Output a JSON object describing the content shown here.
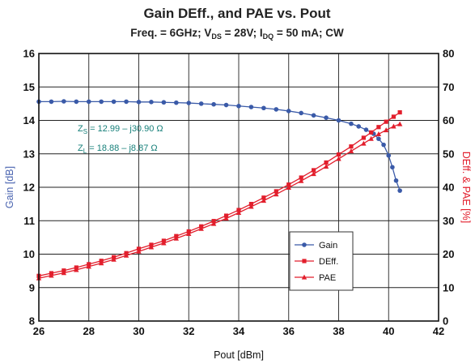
{
  "chart_data": {
    "type": "line",
    "title": "Gain DEff., and PAE vs. Pout",
    "subtitle": {
      "freq": "Freq. = 6GHz; ",
      "vds_main": "V",
      "vds_sub": "DS",
      "vds_tail": " = 28V; ",
      "idq_main": "I",
      "idq_sub": "DQ",
      "idq_tail": " = 50 mA; CW"
    },
    "xlabel": "Pout [dBm]",
    "ylabel_left": "Gain [dB]",
    "ylabel_right": "DEff. & PAE [%]",
    "xlim": [
      26,
      42
    ],
    "ylim_left": [
      8,
      16
    ],
    "ylim_right": [
      0,
      80
    ],
    "xticks": [
      "26",
      "28",
      "30",
      "32",
      "34",
      "36",
      "38",
      "40",
      "42"
    ],
    "yticks_left": [
      "8",
      "9",
      "10",
      "11",
      "12",
      "13",
      "14",
      "15",
      "16"
    ],
    "yticks_right": [
      "0",
      "10",
      "20",
      "30",
      "40",
      "50",
      "60",
      "70",
      "80"
    ],
    "grid": true,
    "legend_position": "lower-right",
    "annotations": {
      "zs_main": "Z",
      "zs_sub": "S",
      "zs_value": " = 12.99 – j30.90 Ω",
      "zl_main": "Z",
      "zl_sub": "L",
      "zl_value": " = 18.88 – j8.87  Ω"
    },
    "colors": {
      "gain": "#3a5aa8",
      "deff": "#e21e2c",
      "pae": "#e21e2c",
      "left_axis_label": "#4a64b0",
      "right_axis_label": "#e21e2c",
      "annotation": "#17807a"
    },
    "series": [
      {
        "name": "Gain",
        "axis": "left",
        "marker": "circle",
        "x": [
          26.0,
          26.5,
          27.0,
          27.5,
          28.0,
          28.5,
          29.0,
          29.5,
          30.0,
          30.5,
          31.0,
          31.5,
          32.0,
          32.5,
          33.0,
          33.5,
          34.0,
          34.5,
          35.0,
          35.5,
          36.0,
          36.5,
          37.0,
          37.5,
          38.0,
          38.5,
          38.8,
          39.1,
          39.4,
          39.6,
          39.8,
          40.0,
          40.15,
          40.3,
          40.45
        ],
        "values": [
          14.56,
          14.56,
          14.57,
          14.56,
          14.56,
          14.56,
          14.56,
          14.56,
          14.55,
          14.55,
          14.54,
          14.53,
          14.52,
          14.5,
          14.48,
          14.46,
          14.43,
          14.4,
          14.37,
          14.33,
          14.28,
          14.22,
          14.15,
          14.08,
          14.0,
          13.9,
          13.82,
          13.72,
          13.6,
          13.45,
          13.27,
          12.95,
          12.6,
          12.2,
          11.9
        ]
      },
      {
        "name": "DEff.",
        "axis": "right",
        "marker": "square",
        "x": [
          26.0,
          26.5,
          27.0,
          27.5,
          28.0,
          28.5,
          29.0,
          29.5,
          30.0,
          30.5,
          31.0,
          31.5,
          32.0,
          32.5,
          33.0,
          33.5,
          34.0,
          34.5,
          35.0,
          35.5,
          36.0,
          36.5,
          37.0,
          37.5,
          38.0,
          38.5,
          39.0,
          39.3,
          39.6,
          39.9,
          40.2,
          40.45
        ],
        "values": [
          13.5,
          14.3,
          15.1,
          16.0,
          17.0,
          18.0,
          19.1,
          20.3,
          21.6,
          22.8,
          24.0,
          25.4,
          26.8,
          28.3,
          29.9,
          31.5,
          33.2,
          35.0,
          36.9,
          38.8,
          40.8,
          42.9,
          45.1,
          47.4,
          49.8,
          52.2,
          54.8,
          56.4,
          58.0,
          59.6,
          61.1,
          62.4
        ]
      },
      {
        "name": "PAE",
        "axis": "right",
        "marker": "triangle",
        "x": [
          26.0,
          26.5,
          27.0,
          27.5,
          28.0,
          28.5,
          29.0,
          29.5,
          30.0,
          30.5,
          31.0,
          31.5,
          32.0,
          32.5,
          33.0,
          33.5,
          34.0,
          34.5,
          35.0,
          35.5,
          36.0,
          36.5,
          37.0,
          37.5,
          38.0,
          38.5,
          39.0,
          39.3,
          39.6,
          39.9,
          40.2,
          40.45
        ],
        "values": [
          12.8,
          13.6,
          14.4,
          15.3,
          16.3,
          17.3,
          18.4,
          19.6,
          20.8,
          22.1,
          23.3,
          24.7,
          26.1,
          27.6,
          29.1,
          30.7,
          32.4,
          34.2,
          36.0,
          37.9,
          39.9,
          41.9,
          44.0,
          46.2,
          48.5,
          50.8,
          53.1,
          54.5,
          55.9,
          57.1,
          58.2,
          58.9
        ]
      }
    ]
  }
}
